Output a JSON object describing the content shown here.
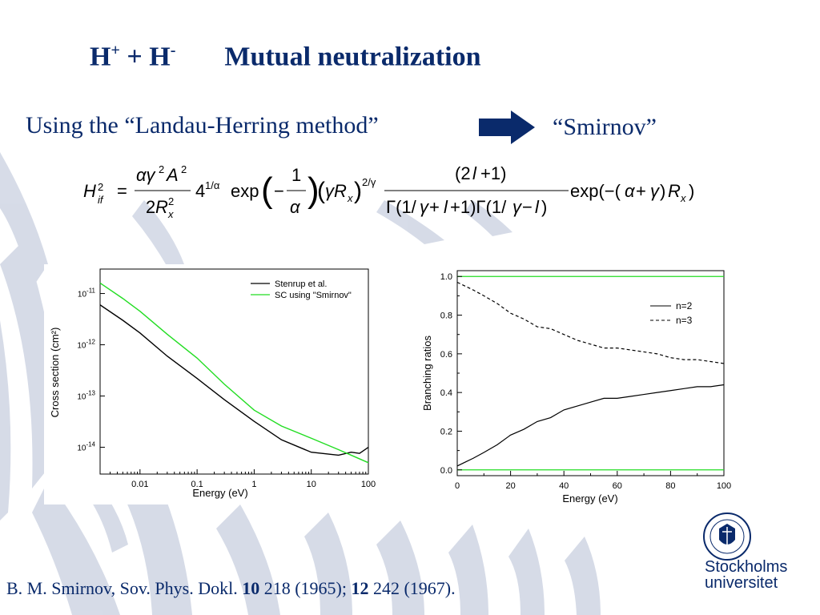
{
  "slide": {
    "title_part1": "H",
    "title_sup1": "+",
    "title_part2": " + H",
    "title_sup2": "-",
    "title_part3": "Mutual neutralization",
    "subtitle": "Using the “Landau-Herring method”",
    "arrow_target": "“Smirnov”",
    "reference_text1": "B. M. Smirnov, Sov. Phys. Dokl. ",
    "reference_bold1": "10",
    "reference_text2": " 218 (1965); ",
    "reference_bold2": "12",
    "reference_text3": " 242 (1967).",
    "logo_line1": "Stockholms",
    "logo_line2": "universitet",
    "colors": {
      "title": "#0a2a6b",
      "watermark": "#c9d0e0",
      "arrow": "#0a2a6b"
    }
  },
  "chart_data": [
    {
      "type": "line",
      "xlabel": "Energy (eV)",
      "ylabel": "Cross section (cm²)",
      "xscale": "log",
      "yscale": "log",
      "xlim": [
        0.002,
        100
      ],
      "ylim": [
        3e-15,
        3e-11
      ],
      "xticks": [
        "0.01",
        "0.1",
        "1",
        "10",
        "100"
      ],
      "yticks": [
        "10-11",
        "10-12",
        "10-13",
        "10-14"
      ],
      "legend_position": "top-right",
      "series": [
        {
          "name": "Stenrup et al.",
          "color": "#000000",
          "x": [
            0.002,
            0.005,
            0.01,
            0.03,
            0.1,
            0.3,
            1,
            3,
            10,
            30,
            50,
            70,
            100
          ],
          "y": [
            6e-12,
            3e-12,
            1.7e-12,
            6e-13,
            2.2e-13,
            8.5e-14,
            3.2e-14,
            1.4e-14,
            8e-15,
            7e-15,
            8e-15,
            7.6e-15,
            1e-14
          ]
        },
        {
          "name": "SC using \"Smirnov\"",
          "color": "#22dd22",
          "x": [
            0.002,
            0.005,
            0.01,
            0.03,
            0.1,
            0.3,
            1,
            3,
            10,
            30,
            50,
            100
          ],
          "y": [
            1.6e-11,
            8e-12,
            4.5e-12,
            1.6e-12,
            5.5e-13,
            1.7e-13,
            5.3e-14,
            2.6e-14,
            1.5e-14,
            9e-15,
            7e-15,
            5e-15
          ]
        }
      ]
    },
    {
      "type": "line",
      "xlabel": "Energy (eV)",
      "ylabel": "Branching ratios",
      "xlim": [
        0,
        100
      ],
      "ylim": [
        -0.03,
        1.03
      ],
      "xticks": [
        "0",
        "20",
        "40",
        "60",
        "80",
        "100"
      ],
      "yticks": [
        "0.0",
        "0.2",
        "0.4",
        "0.6",
        "0.8",
        "1.0"
      ],
      "legend_position": "right",
      "series": [
        {
          "name": "n=2",
          "color": "#000000",
          "style": "solid",
          "x": [
            0,
            3,
            6,
            10,
            15,
            20,
            25,
            30,
            35,
            40,
            45,
            50,
            55,
            60,
            65,
            70,
            75,
            80,
            85,
            90,
            95,
            100
          ],
          "y": [
            0.02,
            0.04,
            0.06,
            0.09,
            0.13,
            0.18,
            0.21,
            0.25,
            0.27,
            0.31,
            0.33,
            0.35,
            0.37,
            0.37,
            0.38,
            0.39,
            0.4,
            0.41,
            0.42,
            0.43,
            0.43,
            0.44
          ]
        },
        {
          "name": "n=3",
          "color": "#000000",
          "style": "dashed",
          "x": [
            0,
            3,
            6,
            10,
            15,
            20,
            25,
            30,
            35,
            40,
            45,
            50,
            55,
            60,
            65,
            70,
            75,
            80,
            85,
            90,
            95,
            100
          ],
          "y": [
            0.97,
            0.95,
            0.93,
            0.9,
            0.86,
            0.81,
            0.78,
            0.74,
            0.73,
            0.7,
            0.67,
            0.65,
            0.63,
            0.63,
            0.62,
            0.61,
            0.6,
            0.58,
            0.57,
            0.57,
            0.56,
            0.55
          ]
        },
        {
          "name": "",
          "color": "#22dd22",
          "style": "solid",
          "x": [
            0,
            100
          ],
          "y": [
            1.0,
            1.0
          ]
        },
        {
          "name": "",
          "color": "#22dd22",
          "style": "solid",
          "x": [
            0,
            100
          ],
          "y": [
            0.0,
            0.0
          ]
        }
      ]
    }
  ]
}
